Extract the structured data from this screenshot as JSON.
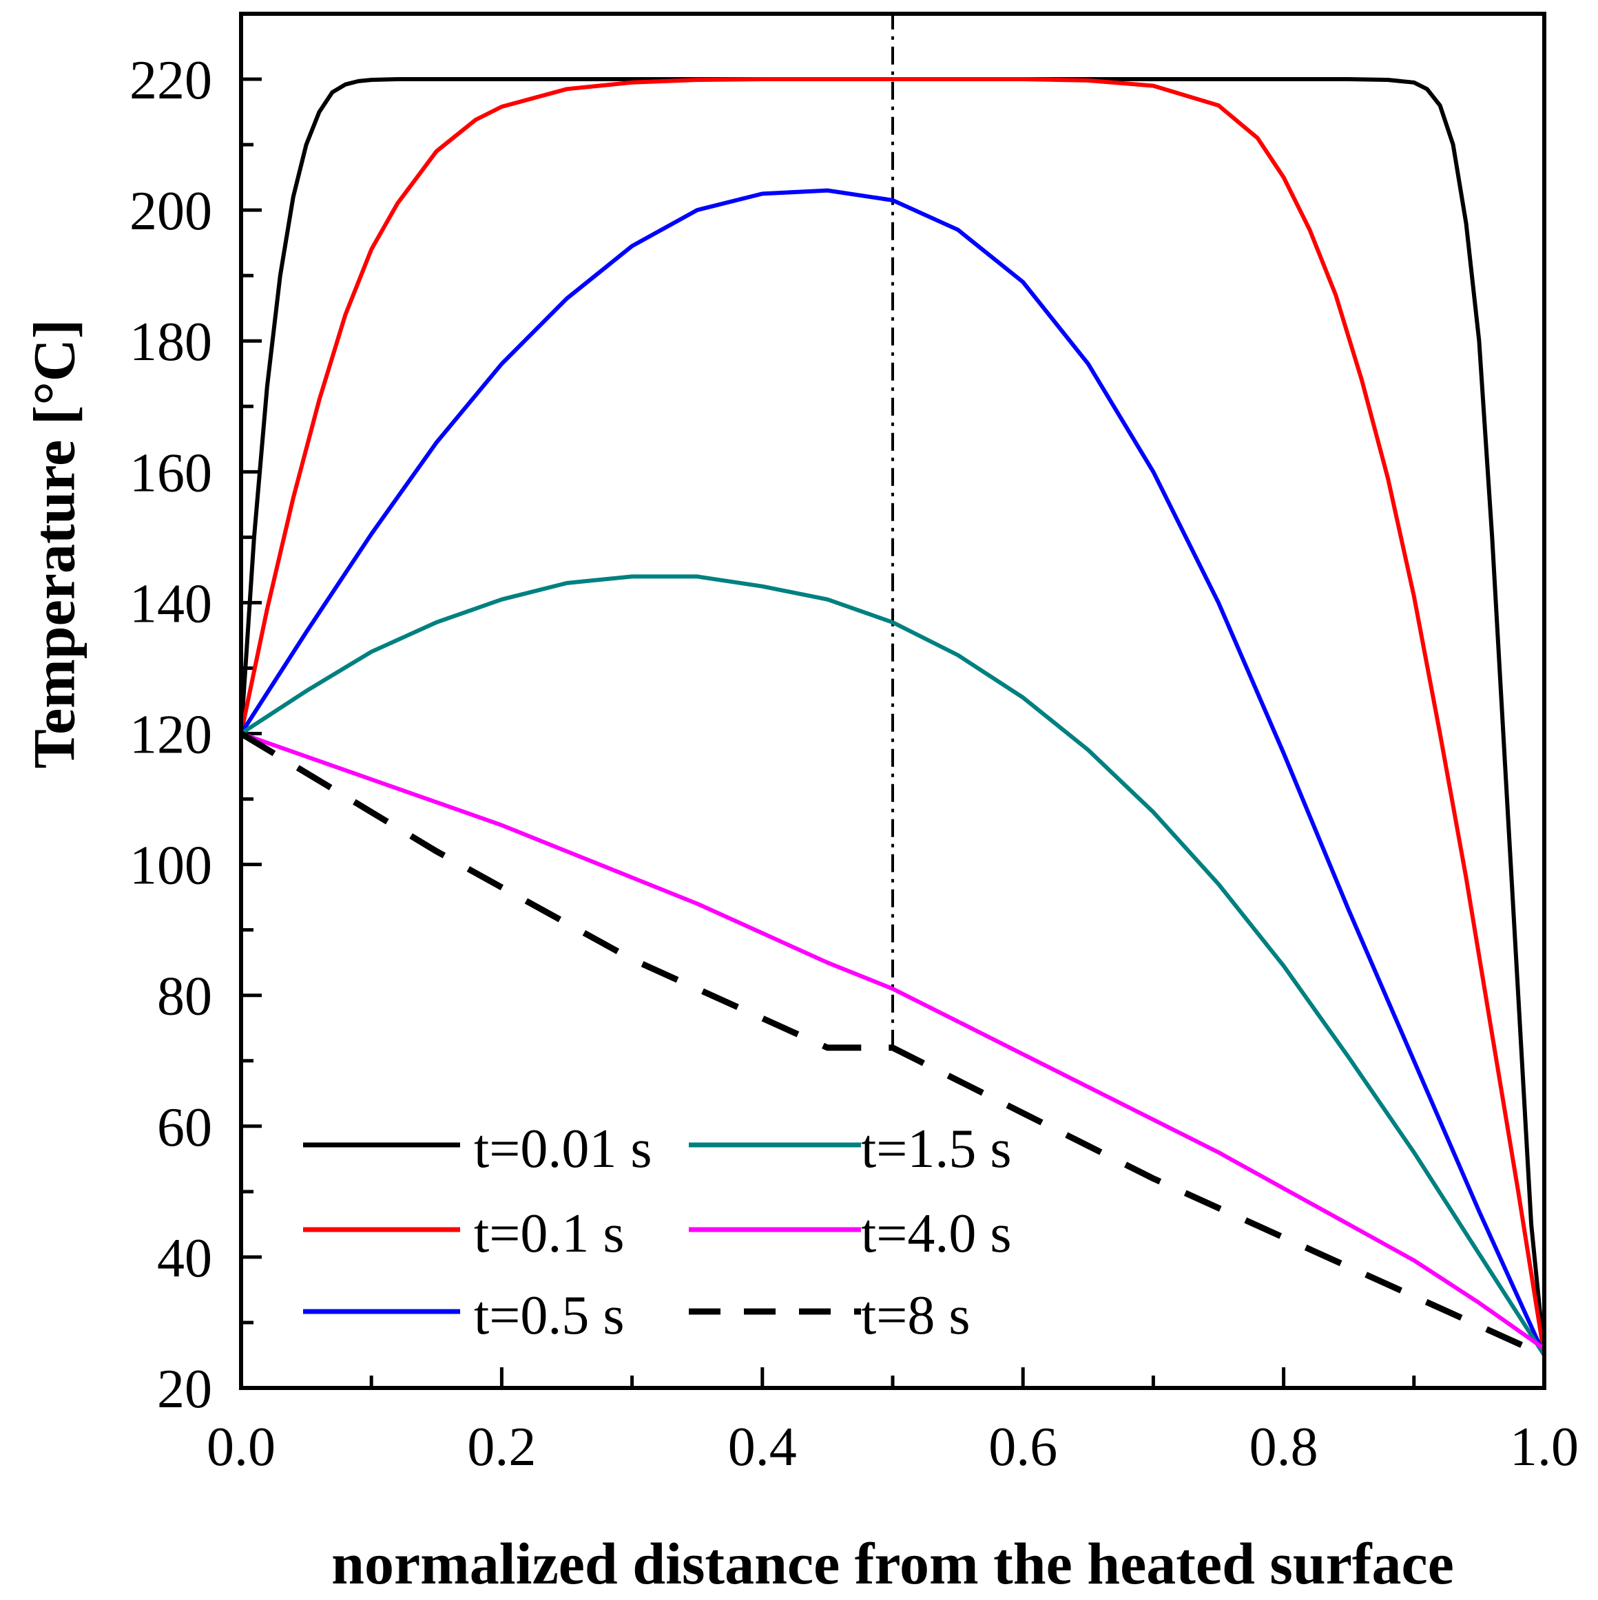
{
  "chart_data": {
    "type": "line",
    "title": "",
    "xlabel": "normalized distance from the heated surface",
    "ylabel": "Temperature [°C]",
    "xlim": [
      0.0,
      1.0
    ],
    "ylim": [
      20,
      230
    ],
    "xticks": [
      0.0,
      0.2,
      0.4,
      0.6,
      0.8,
      1.0
    ],
    "xtick_labels": [
      "0.0",
      "0.2",
      "0.4",
      "0.6",
      "0.8",
      "1.0"
    ],
    "yticks": [
      20,
      40,
      60,
      80,
      100,
      120,
      140,
      160,
      180,
      200,
      220
    ],
    "ytick_labels": [
      "20",
      "40",
      "60",
      "80",
      "100",
      "120",
      "140",
      "160",
      "180",
      "200",
      "220"
    ],
    "grid": false,
    "legend_position": "bottom-left",
    "reference_line": {
      "x": 0.5,
      "y_from": 72,
      "y_to": 230,
      "style": "dash-dot",
      "color": "#000000"
    },
    "series": [
      {
        "name": "t=0.01 s",
        "color": "#000000",
        "dashed": false,
        "x": [
          0.0,
          0.01,
          0.02,
          0.03,
          0.04,
          0.05,
          0.06,
          0.07,
          0.08,
          0.09,
          0.1,
          0.12,
          0.15,
          0.2,
          0.5,
          0.8,
          0.85,
          0.88,
          0.9,
          0.91,
          0.92,
          0.93,
          0.94,
          0.95,
          0.96,
          0.97,
          0.98,
          0.99,
          1.0
        ],
        "y": [
          120,
          150,
          173,
          190,
          202,
          210,
          215,
          218,
          219.2,
          219.7,
          219.9,
          220,
          220,
          220,
          220,
          220,
          220,
          219.9,
          219.5,
          218.5,
          216,
          210,
          198,
          180,
          150,
          115,
          80,
          45,
          25
        ]
      },
      {
        "name": "t=0.1 s",
        "color": "#ff0000",
        "dashed": false,
        "x": [
          0.0,
          0.02,
          0.04,
          0.06,
          0.08,
          0.1,
          0.12,
          0.15,
          0.18,
          0.2,
          0.25,
          0.3,
          0.35,
          0.4,
          0.45,
          0.5,
          0.55,
          0.6,
          0.65,
          0.7,
          0.75,
          0.78,
          0.8,
          0.82,
          0.84,
          0.86,
          0.88,
          0.9,
          0.92,
          0.94,
          0.96,
          0.98,
          1.0
        ],
        "y": [
          120,
          139,
          156,
          171,
          184,
          194,
          201,
          209,
          213.8,
          215.8,
          218.5,
          219.5,
          219.9,
          220,
          220,
          220,
          220,
          220,
          219.8,
          219,
          216,
          211,
          205,
          197,
          187,
          174,
          159,
          141,
          120,
          98,
          74,
          50,
          25
        ]
      },
      {
        "name": "t=0.5 s",
        "color": "#0000ff",
        "dashed": false,
        "x": [
          0.0,
          0.05,
          0.1,
          0.15,
          0.2,
          0.25,
          0.3,
          0.35,
          0.4,
          0.45,
          0.5,
          0.55,
          0.6,
          0.65,
          0.7,
          0.75,
          0.8,
          0.85,
          0.9,
          0.95,
          1.0
        ],
        "y": [
          120,
          135.5,
          150.5,
          164.5,
          176.5,
          186.5,
          194.5,
          200,
          202.5,
          203,
          201.5,
          197,
          189,
          176.5,
          160,
          140,
          117,
          93,
          70,
          47,
          25
        ]
      },
      {
        "name": "t=1.5 s",
        "color": "#008080",
        "dashed": false,
        "x": [
          0.0,
          0.05,
          0.1,
          0.15,
          0.2,
          0.25,
          0.3,
          0.35,
          0.4,
          0.45,
          0.5,
          0.55,
          0.6,
          0.65,
          0.7,
          0.75,
          0.8,
          0.85,
          0.9,
          0.95,
          1.0
        ],
        "y": [
          120,
          126.5,
          132.5,
          137,
          140.5,
          143,
          144,
          144,
          142.5,
          140.5,
          137,
          132,
          125.5,
          117.5,
          108,
          97,
          84.5,
          70.5,
          56,
          40.5,
          25
        ]
      },
      {
        "name": "t=4.0 s",
        "color": "#ff00ff",
        "dashed": false,
        "x": [
          0.0,
          0.05,
          0.1,
          0.15,
          0.2,
          0.25,
          0.3,
          0.35,
          0.4,
          0.45,
          0.5,
          0.55,
          0.6,
          0.65,
          0.7,
          0.75,
          0.8,
          0.85,
          0.9,
          0.95,
          1.0
        ],
        "y": [
          120,
          116.5,
          113,
          109.5,
          106,
          102,
          98,
          94,
          89.5,
          85,
          81,
          76,
          71,
          66,
          61,
          56,
          50.5,
          45,
          39.5,
          33,
          26
        ]
      },
      {
        "name": "t=8 s",
        "color": "#000000",
        "dashed": true,
        "x": [
          0.0,
          0.05,
          0.1,
          0.15,
          0.2,
          0.25,
          0.3,
          0.35,
          0.4,
          0.45,
          0.5,
          0.55,
          0.6,
          0.65,
          0.7,
          0.75,
          0.8,
          0.85,
          0.9,
          0.95,
          1.0
        ],
        "y": [
          120,
          114,
          108,
          102,
          96.5,
          91,
          85.5,
          81,
          76.5,
          72,
          72,
          67,
          62,
          57,
          52,
          47.5,
          43,
          38.5,
          34,
          29.5,
          25
        ]
      }
    ]
  }
}
